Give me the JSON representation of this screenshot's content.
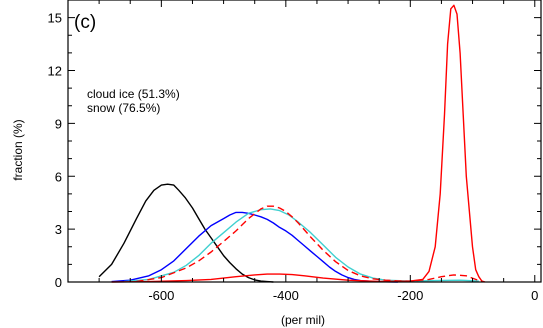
{
  "chart_data": {
    "type": "line",
    "panel_label": "(c)",
    "xlabel": "(per mil)",
    "ylabel": "fraction (%)",
    "xlim": [
      -750,
      10
    ],
    "ylim": [
      0,
      16
    ],
    "xticks": [
      -600,
      -400,
      -200,
      0
    ],
    "yticks": [
      0,
      3,
      6,
      9,
      12,
      15
    ],
    "annotations": [
      "cloud ice (51.3%)",
      "snow (76.5%)"
    ],
    "grid": false,
    "series": [
      {
        "color": "#000000",
        "style": "solid",
        "x": [
          -700,
          -680,
          -660,
          -640,
          -625,
          -612,
          -600,
          -590,
          -580,
          -572,
          -562,
          -550,
          -540,
          -530,
          -520,
          -510,
          -500,
          -490,
          -480,
          -470,
          -460,
          -450,
          -440,
          -430,
          -420
        ],
        "y": [
          0.3,
          1.0,
          2.2,
          3.6,
          4.6,
          5.2,
          5.5,
          5.55,
          5.5,
          5.2,
          4.8,
          4.2,
          3.6,
          3.0,
          2.5,
          2.0,
          1.5,
          1.1,
          0.75,
          0.45,
          0.25,
          0.12,
          0.05,
          0.02,
          0.0
        ]
      },
      {
        "color": "#0000ff",
        "style": "solid",
        "x": [
          -680,
          -650,
          -620,
          -600,
          -580,
          -560,
          -540,
          -520,
          -500,
          -490,
          -480,
          -470,
          -460,
          -450,
          -440,
          -430,
          -420,
          -410,
          -400,
          -390,
          -380,
          -370,
          -360,
          -350,
          -340,
          -330,
          -320,
          -310,
          -300,
          -290,
          -280,
          -260,
          -240,
          -220
        ],
        "y": [
          0.02,
          0.1,
          0.35,
          0.7,
          1.2,
          1.9,
          2.6,
          3.2,
          3.6,
          3.8,
          3.95,
          3.95,
          3.9,
          3.8,
          3.7,
          3.55,
          3.35,
          3.1,
          2.9,
          2.65,
          2.35,
          2.05,
          1.75,
          1.45,
          1.15,
          0.85,
          0.6,
          0.4,
          0.25,
          0.15,
          0.08,
          0.03,
          0.01,
          0.0
        ]
      },
      {
        "color": "#40d0d0",
        "style": "solid",
        "x": [
          -660,
          -620,
          -580,
          -560,
          -540,
          -520,
          -500,
          -480,
          -460,
          -440,
          -425,
          -410,
          -395,
          -380,
          -360,
          -340,
          -320,
          -300,
          -280,
          -260,
          -240,
          -200,
          -160,
          -120,
          -90
        ],
        "y": [
          0.02,
          0.15,
          0.55,
          0.95,
          1.5,
          2.2,
          2.8,
          3.4,
          3.9,
          4.1,
          4.15,
          4.05,
          3.8,
          3.4,
          2.8,
          2.1,
          1.4,
          0.85,
          0.45,
          0.22,
          0.1,
          0.05,
          0.08,
          0.1,
          0.05
        ]
      },
      {
        "color": "#ff0000",
        "style": "solid",
        "x": [
          -680,
          -620,
          -560,
          -520,
          -480,
          -450,
          -430,
          -410,
          -390,
          -370,
          -340,
          -300,
          -250,
          -200,
          -180,
          -170,
          -160,
          -152,
          -145,
          -140,
          -135,
          -130,
          -125,
          -120,
          -115,
          -110,
          -100,
          -95,
          -90,
          -85,
          -80
        ],
        "y": [
          0.0,
          0.02,
          0.08,
          0.15,
          0.3,
          0.4,
          0.45,
          0.45,
          0.42,
          0.35,
          0.22,
          0.1,
          0.03,
          0.05,
          0.15,
          0.6,
          2.0,
          5.0,
          9.5,
          13.5,
          15.5,
          15.7,
          15.2,
          13.0,
          9.5,
          6.0,
          2.0,
          0.7,
          0.3,
          0.05,
          0.0
        ]
      },
      {
        "color": "#ff0000",
        "style": "dashed",
        "x": [
          -640,
          -600,
          -560,
          -540,
          -520,
          -500,
          -480,
          -460,
          -440,
          -430,
          -420,
          -410,
          -400,
          -390,
          -380,
          -370,
          -360,
          -340,
          -320,
          -300,
          -280,
          -260,
          -240,
          -220,
          -200,
          -170,
          -150,
          -130,
          -110,
          -95,
          -85
        ],
        "y": [
          0.03,
          0.25,
          0.8,
          1.2,
          1.7,
          2.3,
          2.9,
          3.6,
          4.15,
          4.3,
          4.3,
          4.2,
          4.0,
          3.7,
          3.35,
          2.95,
          2.55,
          1.8,
          1.15,
          0.65,
          0.35,
          0.18,
          0.1,
          0.06,
          0.05,
          0.15,
          0.3,
          0.4,
          0.35,
          0.15,
          0.05
        ]
      }
    ]
  }
}
